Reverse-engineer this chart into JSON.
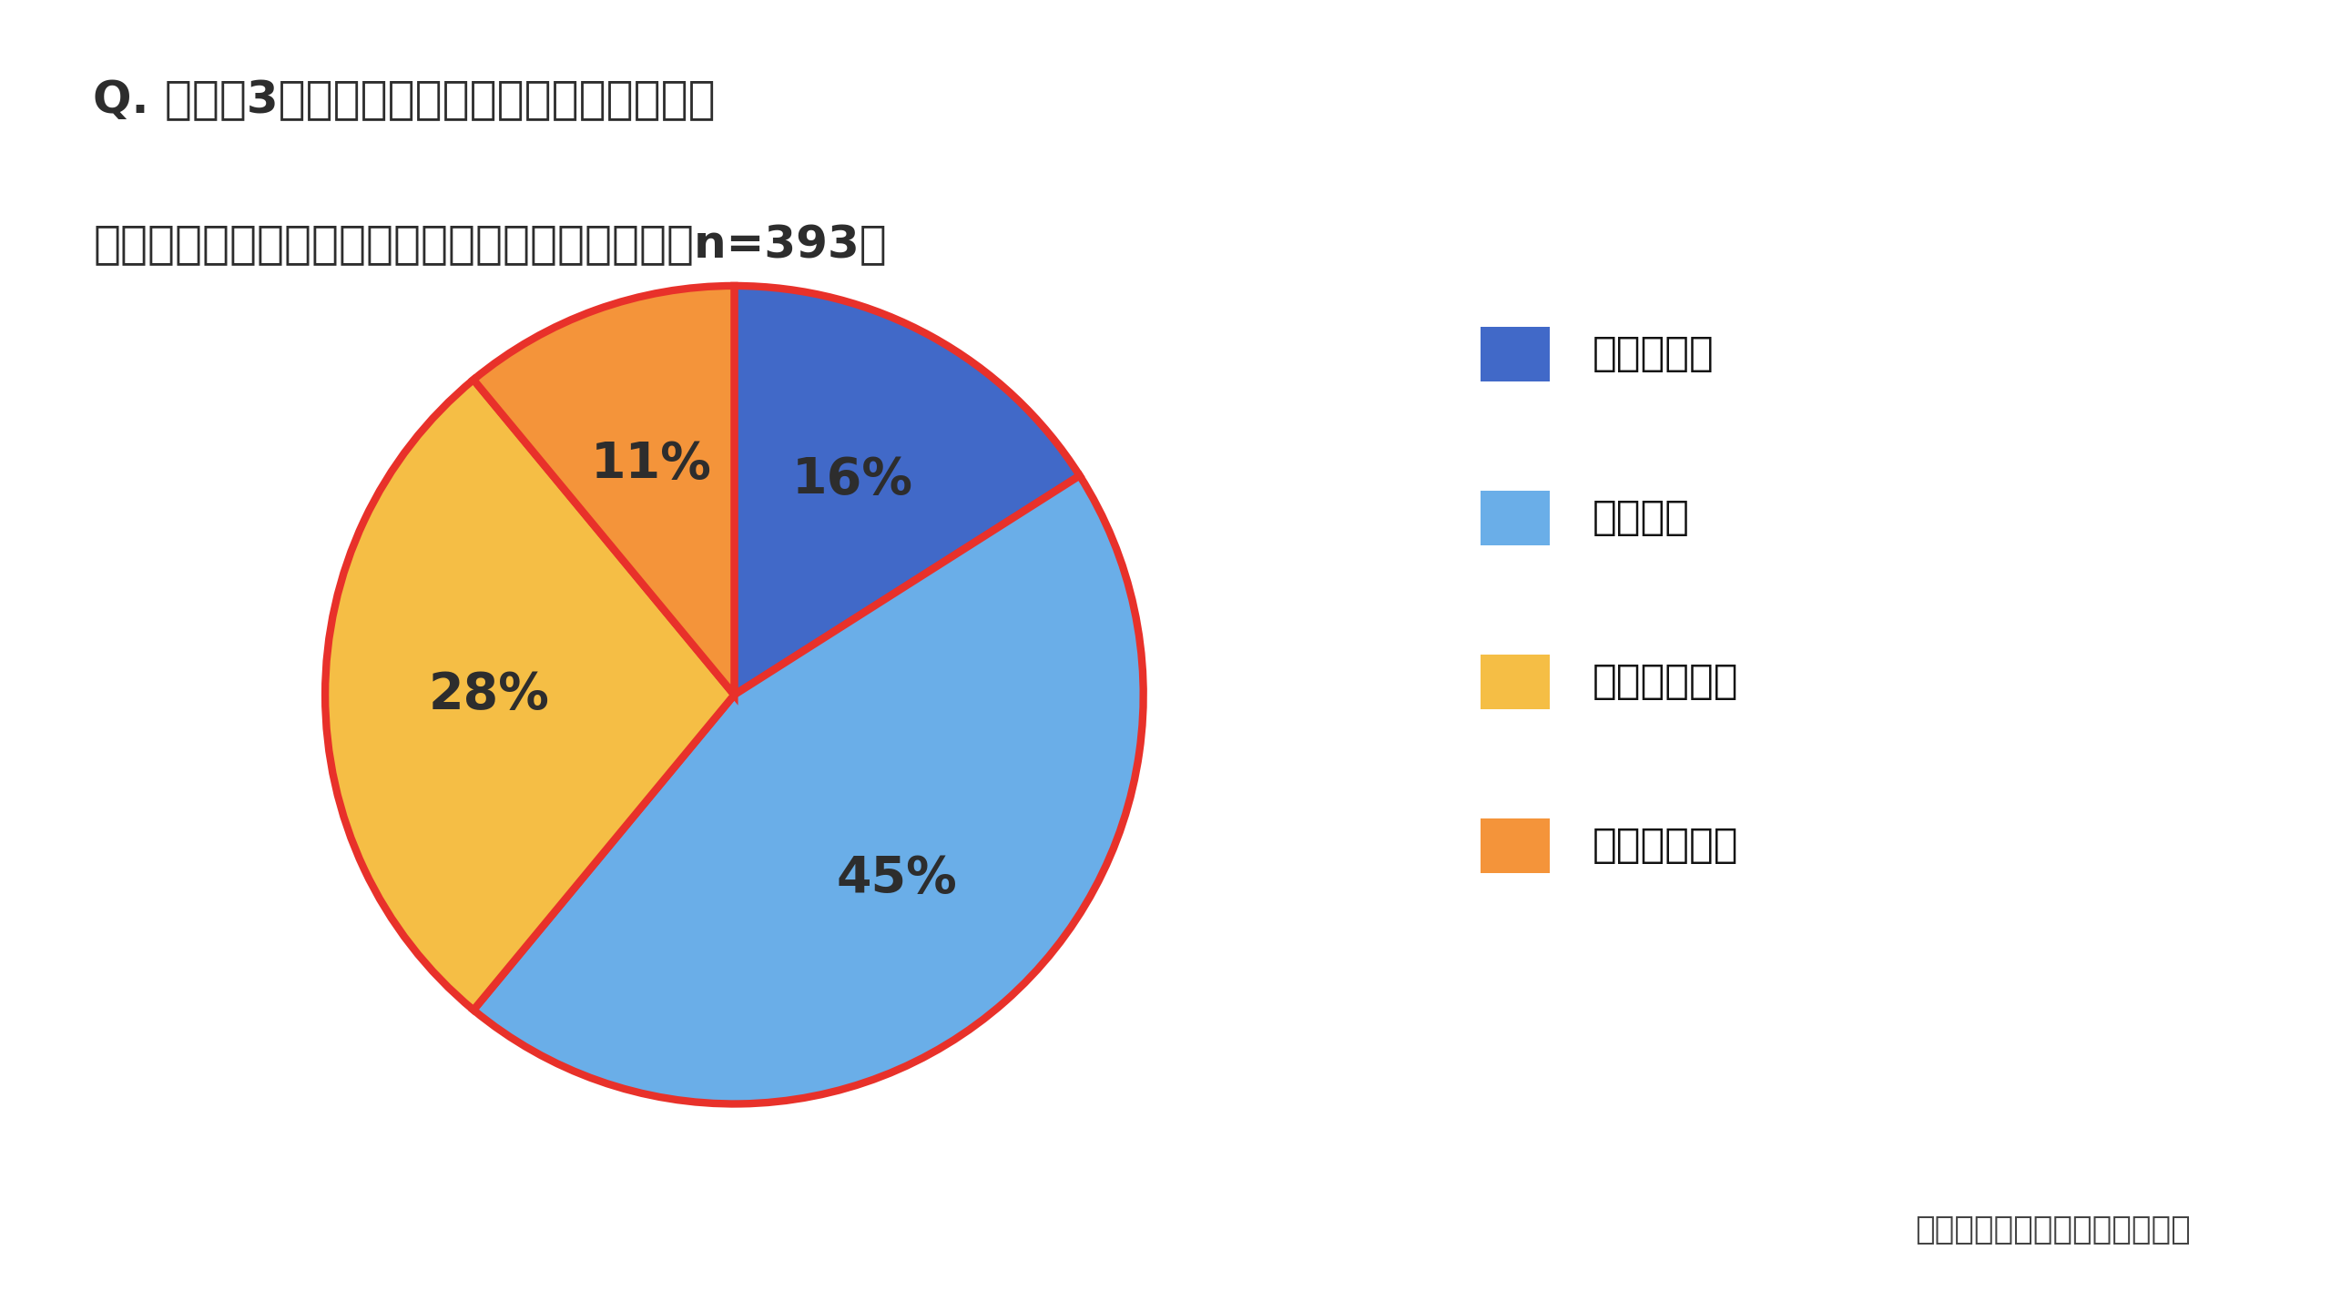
{
  "title_line1": "Q. 夏場に3日以上の長期外出から帰宅した際、",
  "title_line2": "　　家のニオイが気になることはありますか？（n=393）",
  "slices": [
    16,
    45,
    28,
    11
  ],
  "labels": [
    "16%",
    "45%",
    "28%",
    "11%"
  ],
  "colors": [
    "#4169C8",
    "#6AAEE8",
    "#F5BE45",
    "#F4943A"
  ],
  "legend_labels": [
    "頻繁にある",
    "時々ある",
    "ほとんどない",
    "まったくない"
  ],
  "legend_colors": [
    "#4169C8",
    "#6AAEE8",
    "#F5BE45",
    "#F4943A"
  ],
  "edge_color": "#E8312A",
  "edge_width": 6,
  "source_text": "パナソニック「エオリア」調べ",
  "background_color": "#FFFFFF",
  "title_color": "#2d2d2d",
  "label_color": "#2d2d2d",
  "legend_color": "#111111",
  "source_color": "#444444"
}
